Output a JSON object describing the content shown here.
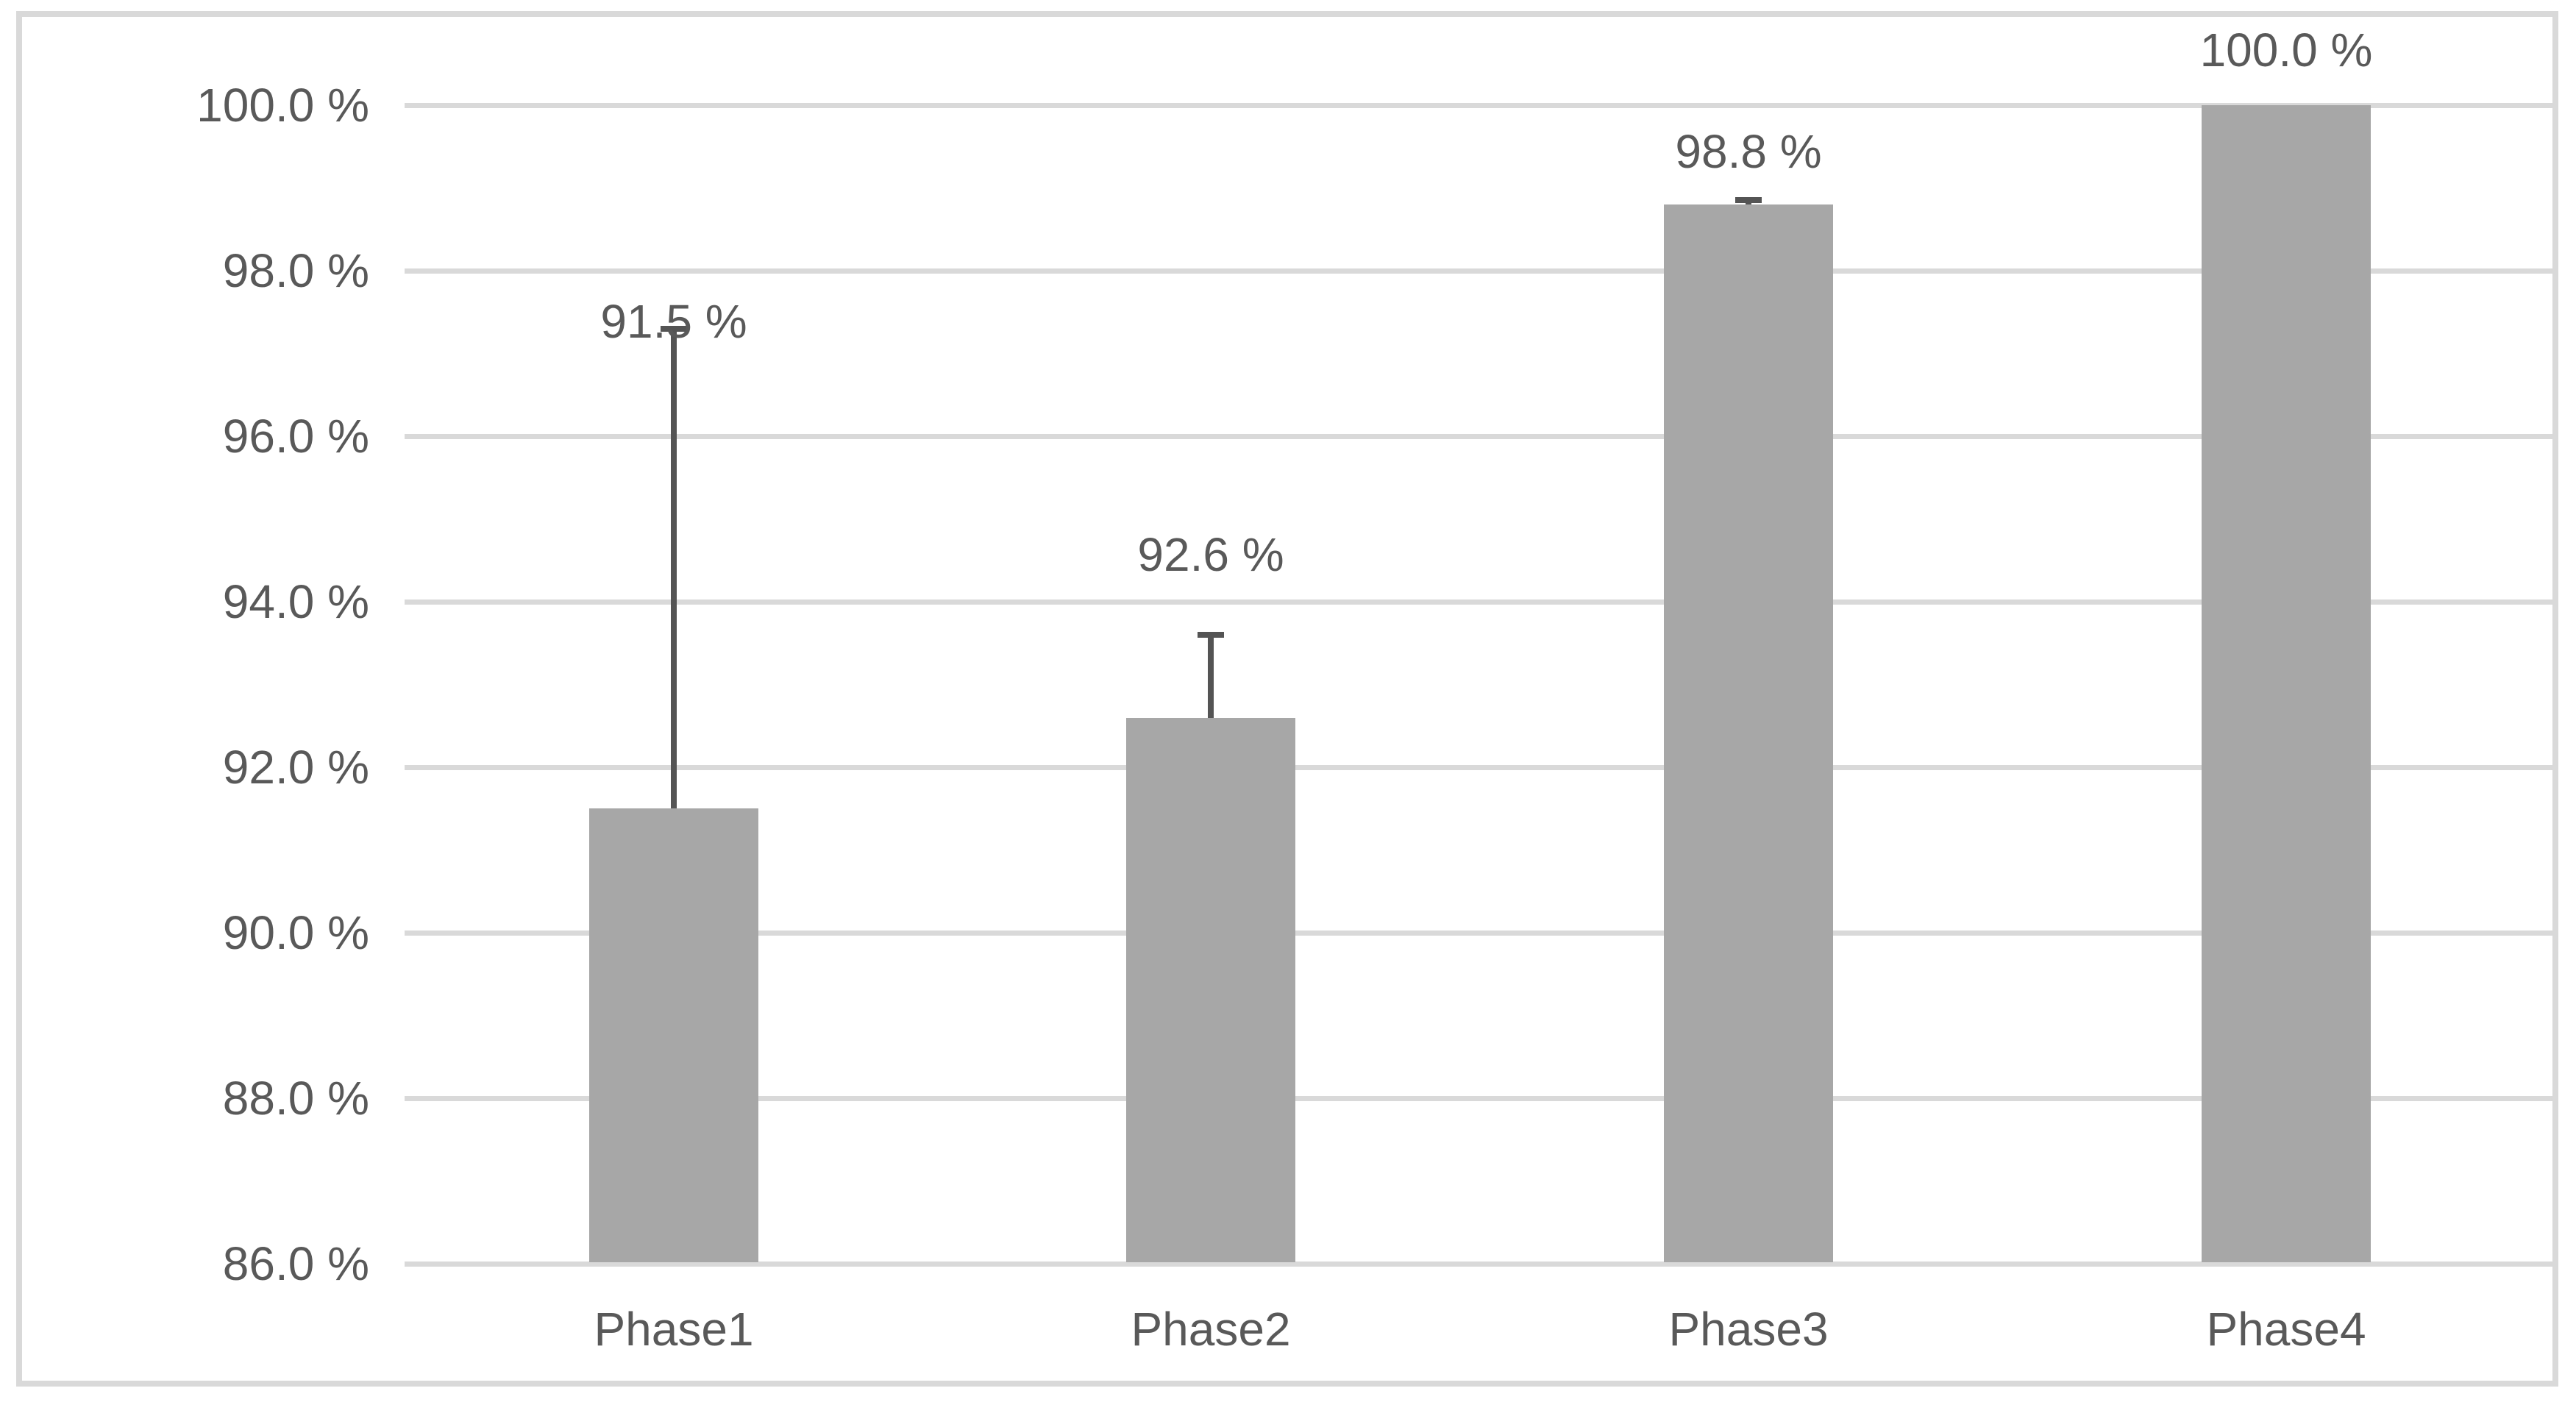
{
  "chart_data": {
    "type": "bar",
    "title": "",
    "xlabel": "",
    "ylabel": "",
    "categories": [
      "Phase1",
      "Phase2",
      "Phase3",
      "Phase4"
    ],
    "values": [
      91.5,
      92.6,
      98.8,
      100.0
    ],
    "data_labels": [
      "91.5 %",
      "92.6 %",
      "98.8 %",
      "100.0 %"
    ],
    "error_bar_upper_tops": [
      97.3,
      93.6,
      98.85,
      null
    ],
    "ylim": [
      86,
      100
    ],
    "y_tick_step": 2,
    "y_ticks": [
      100,
      98,
      96,
      94,
      92,
      90,
      88,
      86
    ],
    "y_tick_labels": [
      "100.0 %",
      "98.0 %",
      "96.0 %",
      "94.0 %",
      "92.0 %",
      "90.0 %",
      "88.0 %",
      "86.0 %"
    ],
    "grid": "horizontal",
    "legend": "none",
    "colors": {
      "bar_fill": "#a7a7a7",
      "error_bar": "#545454",
      "text": "#595959",
      "gridline": "#d9d9d9",
      "frame_border": "#d9d9d9",
      "background": "#ffffff"
    }
  }
}
